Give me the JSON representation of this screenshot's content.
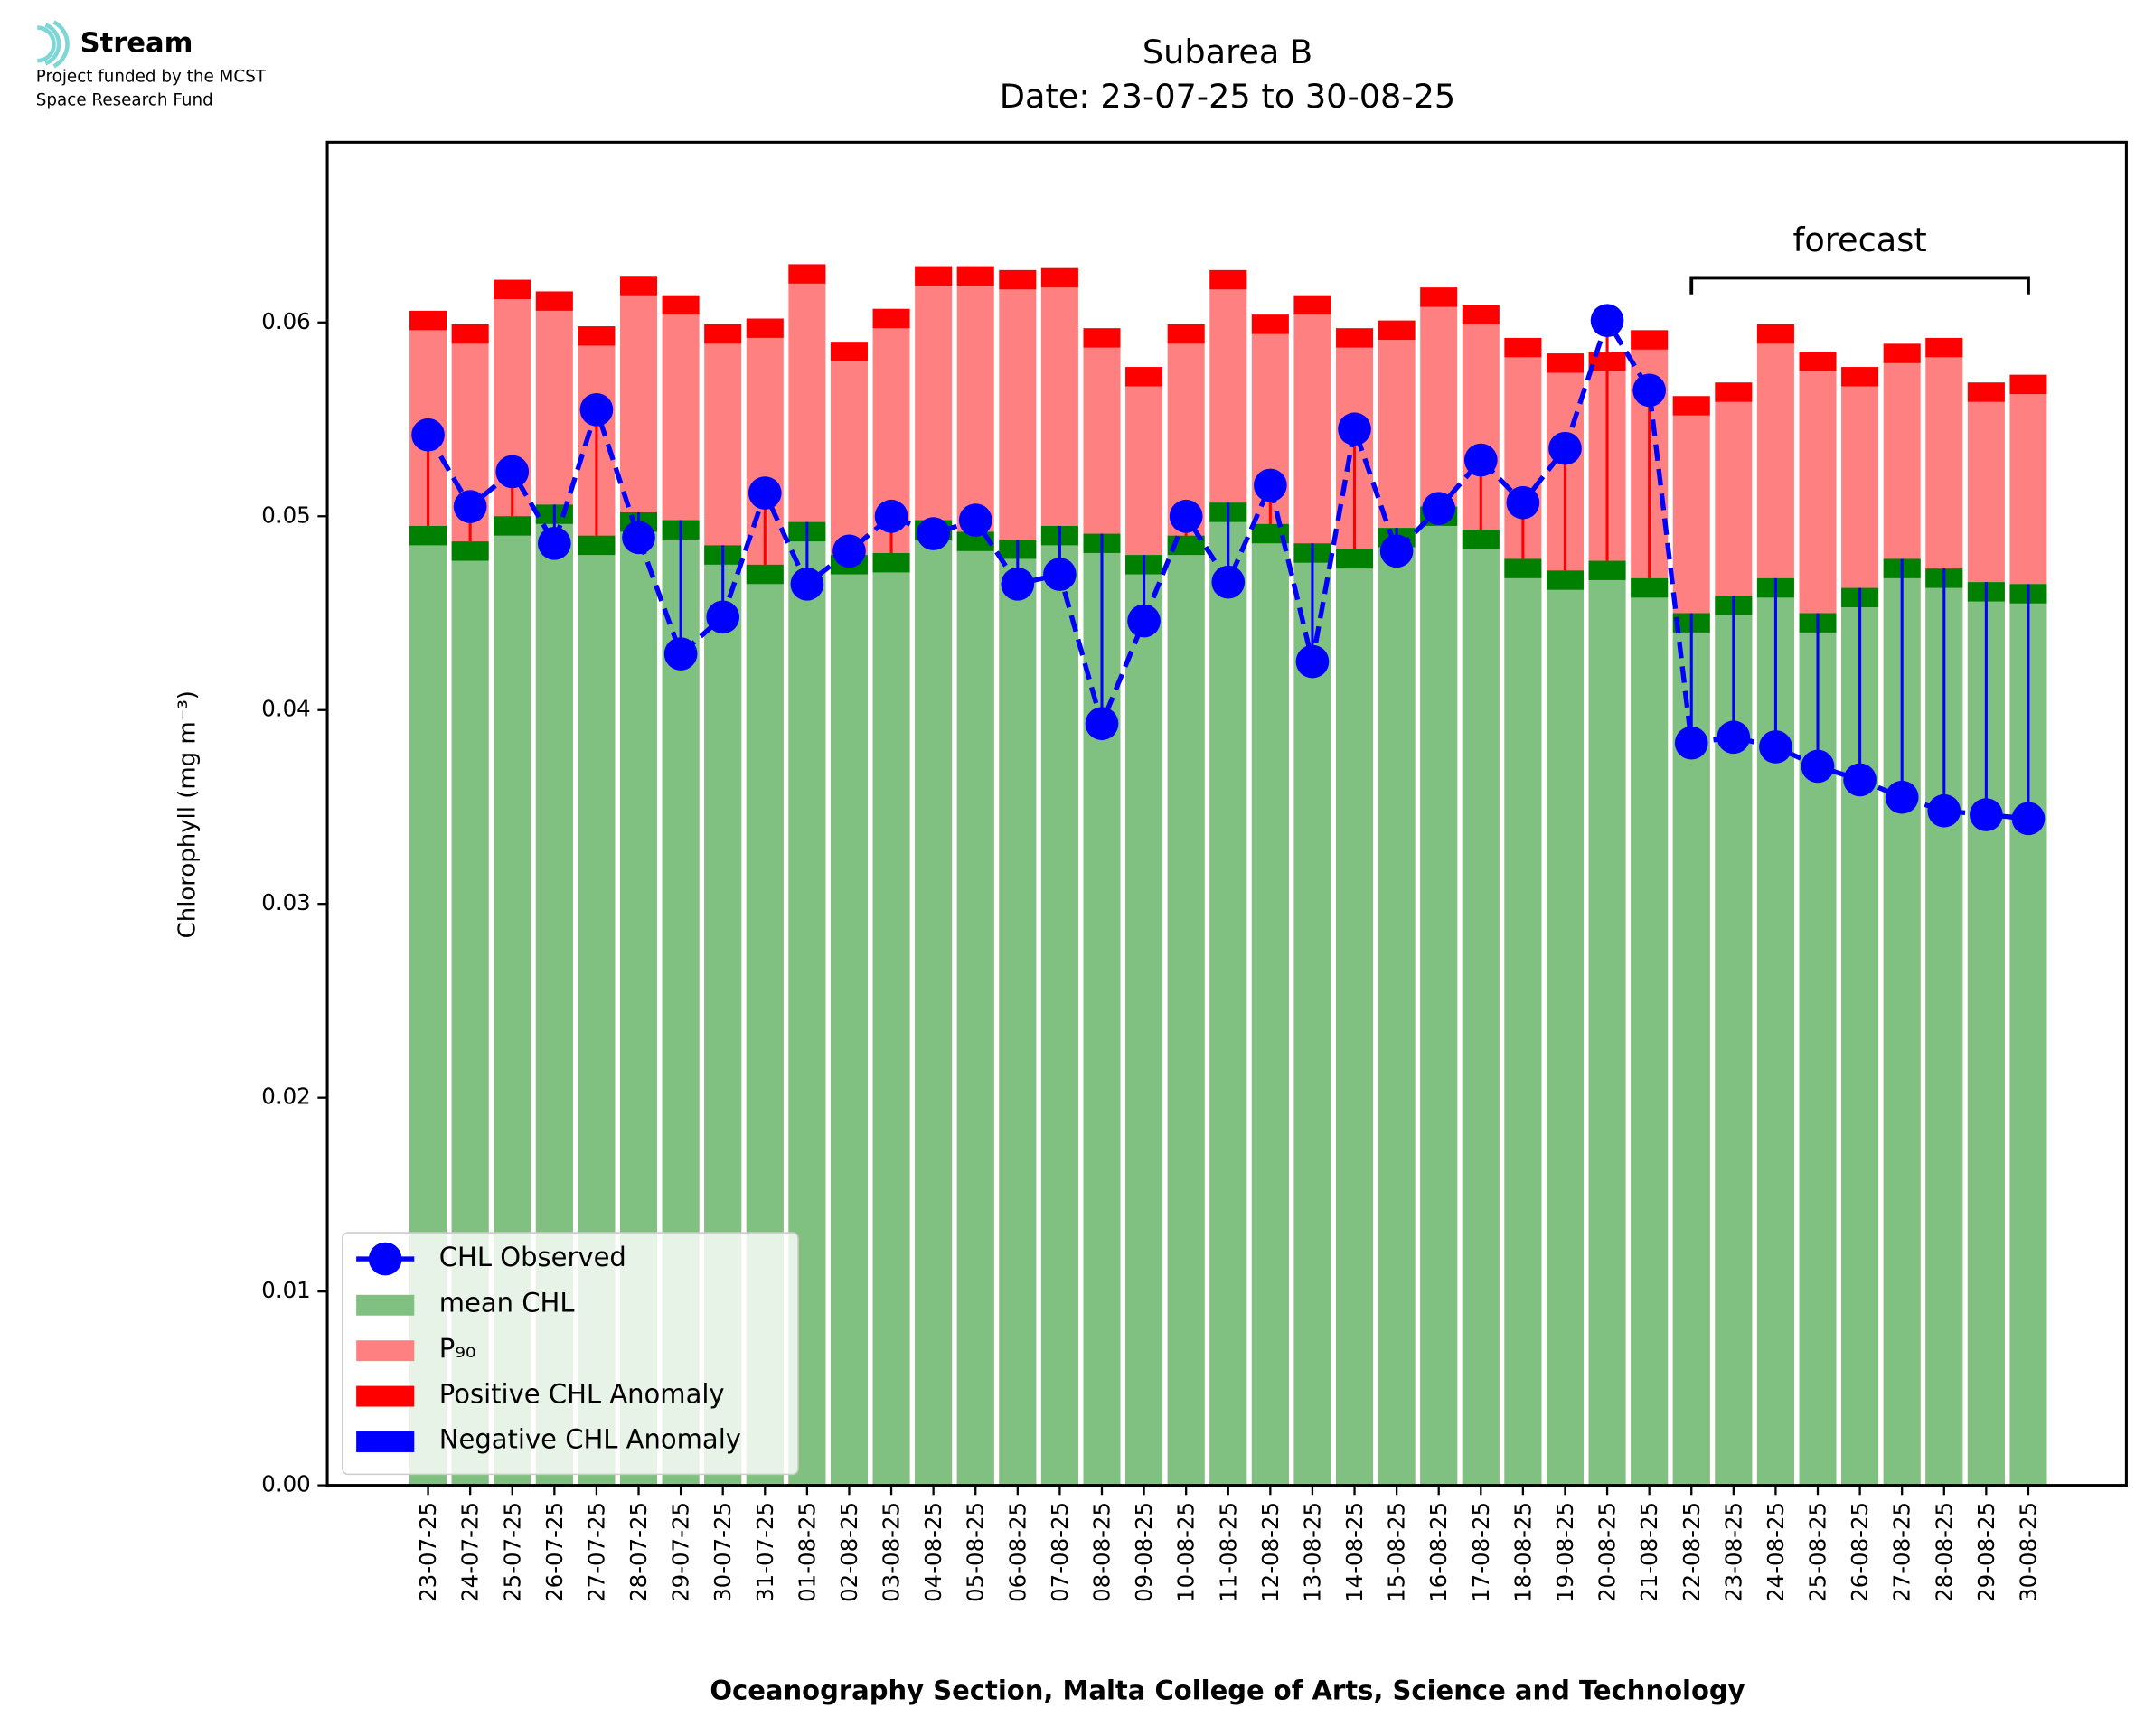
{
  "logo": {
    "name": "Stream",
    "line1": "Project funded by the MCST",
    "line2": "Space Research Fund"
  },
  "chart_data": {
    "type": "bar",
    "title": "Subarea B",
    "subtitle": "Date: 23-07-25 to 30-08-25",
    "x_label": "Oceanography Section, Malta College of Arts, Science and Technology",
    "y_label": "Chlorophyll (mg m⁻³)",
    "categories": [
      "23-07-25",
      "24-07-25",
      "25-07-25",
      "26-07-25",
      "27-07-25",
      "28-07-25",
      "29-07-25",
      "30-07-25",
      "31-07-25",
      "01-08-25",
      "02-08-25",
      "03-08-25",
      "04-08-25",
      "05-08-25",
      "06-08-25",
      "07-08-25",
      "08-08-25",
      "09-08-25",
      "10-08-25",
      "11-08-25",
      "12-08-25",
      "13-08-25",
      "14-08-25",
      "15-08-25",
      "16-08-25",
      "17-08-25",
      "18-08-25",
      "19-08-25",
      "20-08-25",
      "21-08-25",
      "22-08-25",
      "23-08-25",
      "24-08-25",
      "25-08-25",
      "26-08-25",
      "27-08-25",
      "28-08-25",
      "29-08-25",
      "30-08-25"
    ],
    "series": [
      {
        "name": "CHL Observed",
        "color": "#0000ff",
        "values": [
          0.0542,
          0.0505,
          0.0523,
          0.0486,
          0.0555,
          0.0489,
          0.0429,
          0.0448,
          0.0512,
          0.0465,
          0.0482,
          0.05,
          0.0491,
          0.0498,
          0.0465,
          0.047,
          0.0393,
          0.0446,
          0.05,
          0.0466,
          0.0516,
          0.0425,
          0.0545,
          0.0482,
          0.0504,
          0.0529,
          0.0507,
          0.0535,
          0.0601,
          0.0565,
          0.0383,
          0.0386,
          0.0381,
          0.0371,
          0.0364,
          0.0355,
          0.0348,
          0.0346,
          0.0344
        ]
      },
      {
        "name": "mean CHL",
        "color": "#80c080",
        "strip_color": "#008000",
        "values": [
          0.0495,
          0.0487,
          0.05,
          0.0506,
          0.049,
          0.0502,
          0.0498,
          0.0485,
          0.0475,
          0.0497,
          0.048,
          0.0481,
          0.0498,
          0.0492,
          0.0488,
          0.0495,
          0.0491,
          0.048,
          0.049,
          0.0507,
          0.0496,
          0.0486,
          0.0483,
          0.0494,
          0.0505,
          0.0493,
          0.0478,
          0.0472,
          0.0477,
          0.0468,
          0.045,
          0.0459,
          0.0468,
          0.045,
          0.0463,
          0.0478,
          0.0473,
          0.0466,
          0.0465
        ]
      },
      {
        "name": "P₉₀",
        "color": "#ff8080",
        "strip_color": "#ff0000",
        "values": [
          0.0606,
          0.0599,
          0.0622,
          0.0616,
          0.0598,
          0.0624,
          0.0614,
          0.0599,
          0.0602,
          0.063,
          0.059,
          0.0607,
          0.0629,
          0.0629,
          0.0627,
          0.0628,
          0.0597,
          0.0577,
          0.0599,
          0.0627,
          0.0604,
          0.0614,
          0.0597,
          0.0601,
          0.0618,
          0.0609,
          0.0592,
          0.0584,
          0.0585,
          0.0596,
          0.0562,
          0.0569,
          0.0599,
          0.0585,
          0.0577,
          0.0589,
          0.0592,
          0.0569,
          0.0573
        ]
      }
    ],
    "anomalies": [
      {
        "name": "Positive CHL Anomaly",
        "color": "#ff0000"
      },
      {
        "name": "Negative CHL Anomaly",
        "color": "#0000ff"
      }
    ],
    "annotations": [
      {
        "text": "forecast",
        "x_range": [
          "22-08-25",
          "30-08-25"
        ],
        "y": 0.0623
      }
    ],
    "ylim": [
      0,
      0.0693
    ],
    "yticks": [
      {
        "value": 0,
        "label": "0.00"
      },
      0.01,
      0.02,
      0.03,
      0.04,
      0.05,
      0.06
    ],
    "legend": "lower left"
  }
}
